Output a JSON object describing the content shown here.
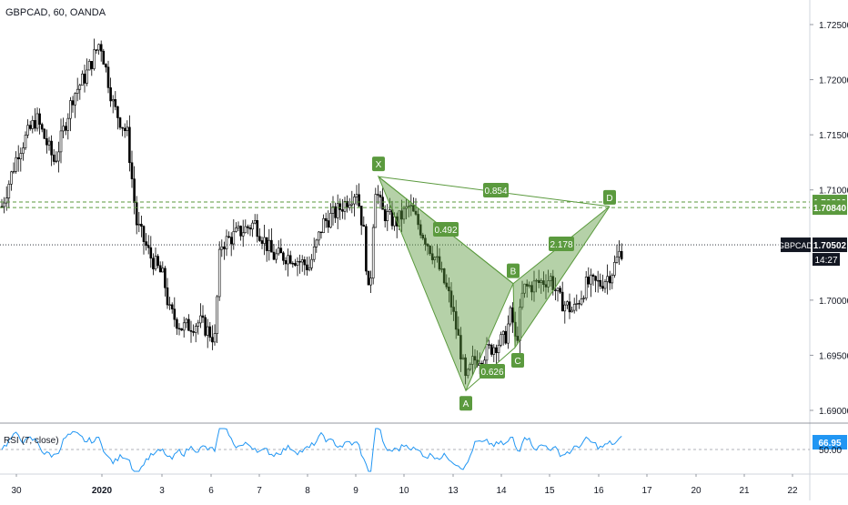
{
  "chart_data": {
    "type": "candlestick",
    "title": "GBPCAD, 60, OANDA",
    "price_axis": {
      "ticks": [
        "1.72500",
        "1.72000",
        "1.71500",
        "1.71000",
        "1.70000",
        "1.69500",
        "1.69000"
      ],
      "tick_values": [
        1.725,
        1.72,
        1.715,
        1.71,
        1.7,
        1.695,
        1.69
      ],
      "range": [
        1.6867,
        1.7283
      ]
    },
    "time_axis": {
      "ticks": [
        "30",
        "2020",
        "3",
        "6",
        "7",
        "8",
        "9",
        "10",
        "13",
        "14",
        "15",
        "16",
        "17",
        "20",
        "21",
        "22"
      ]
    },
    "price_levels": [
      {
        "label": "1.70890",
        "value": 1.7089,
        "style": "dashed",
        "color": "#5b9a3e"
      },
      {
        "label": "1.70840",
        "value": 1.7084,
        "style": "dashed",
        "color": "#5b9a3e"
      }
    ],
    "current_price": {
      "symbol": "GBPCAD",
      "label": "1.70502",
      "value": 1.70502,
      "countdown": "14:27"
    },
    "harmonic_pattern": {
      "points": [
        {
          "name": "X",
          "date_index": 409,
          "price": 1.7112
        },
        {
          "name": "A",
          "date_index": 512,
          "price": 1.6918
        },
        {
          "name": "B",
          "date_index": 562,
          "price": 1.7015
        },
        {
          "name": "C",
          "date_index": 565,
          "price": 1.6957
        },
        {
          "name": "D",
          "date_index": 669,
          "price": 1.7085
        }
      ],
      "ratios": [
        {
          "label": "0.854",
          "between": "X-D"
        },
        {
          "label": "0.492",
          "between": "X-B"
        },
        {
          "label": "0.626",
          "between": "A-C"
        },
        {
          "label": "2.178",
          "between": "B-D"
        }
      ],
      "color": "#5b9a3e"
    },
    "candles_seed": 7,
    "indicator": {
      "name": "RSI (7, close)",
      "value": "66.95",
      "level_label": "50.00",
      "color": "#2196f3"
    },
    "grid": false
  }
}
